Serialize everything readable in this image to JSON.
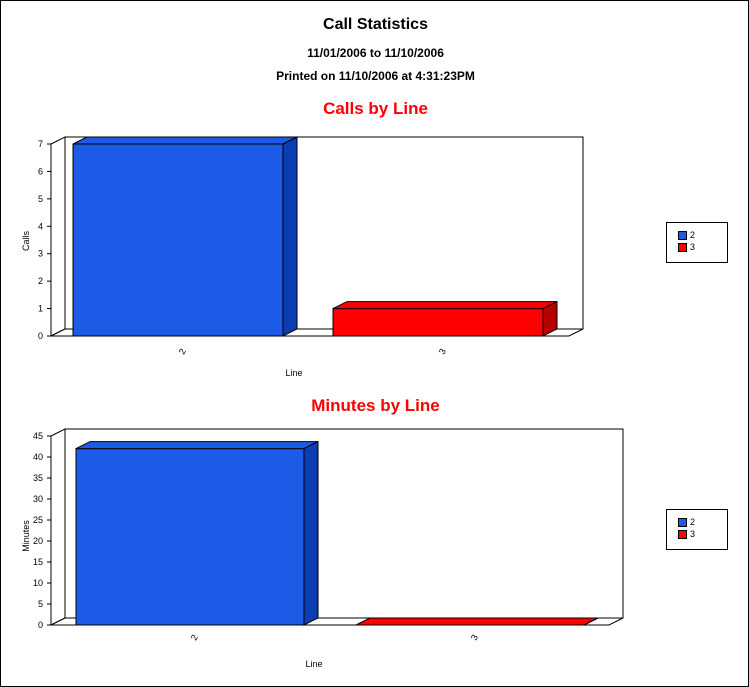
{
  "report": {
    "title": "Call Statistics",
    "date_range": "11/01/2006 to 11/10/2006",
    "printed_on": "Printed on 11/10/2006  at  4:31:23PM"
  },
  "colors": {
    "title": "#ff0000",
    "series_2": "#1c5be6",
    "series_2_side": "#0d3db2",
    "series_3": "#ff0000",
    "series_3_side": "#b80000"
  },
  "chart_data": [
    {
      "type": "bar",
      "title": "Calls by Line",
      "xlabel": "Line",
      "ylabel": "Calls",
      "categories": [
        "2",
        "3"
      ],
      "values": [
        7,
        1
      ],
      "ylim": [
        0,
        7
      ],
      "yticks": [
        "0",
        "1",
        "2",
        "3",
        "4",
        "5",
        "6",
        "7"
      ],
      "legend": [
        "2",
        "3"
      ],
      "legend_position": "right",
      "grid": false
    },
    {
      "type": "bar",
      "title": "Minutes by Line",
      "xlabel": "Line",
      "ylabel": "Minutes",
      "categories": [
        "2",
        "3"
      ],
      "values": [
        42,
        0
      ],
      "ylim": [
        0,
        45
      ],
      "yticks": [
        "0",
        "5",
        "10",
        "15",
        "20",
        "25",
        "30",
        "35",
        "40",
        "45"
      ],
      "legend": [
        "2",
        "3"
      ],
      "legend_position": "right",
      "grid": false
    }
  ]
}
